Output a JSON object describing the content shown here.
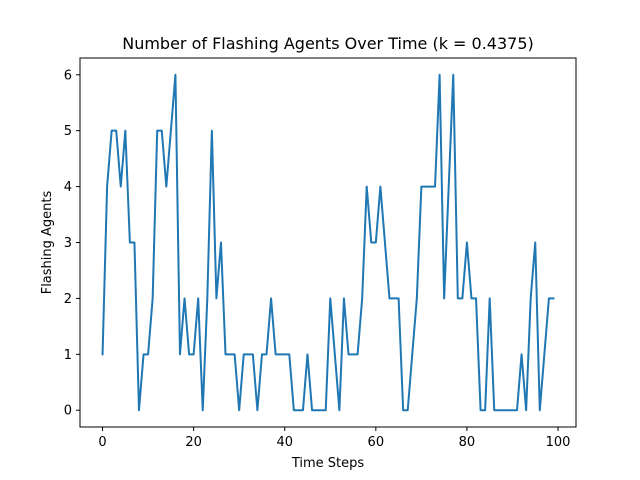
{
  "chart_data": {
    "type": "line",
    "title": "Number of Flashing Agents Over Time (k = 0.4375)",
    "xlabel": "Time Steps",
    "ylabel": "Flashing Agents",
    "xlim": [
      -4.95,
      103.95
    ],
    "ylim": [
      -0.3,
      6.3
    ],
    "xticks": [
      0,
      20,
      40,
      60,
      80,
      100
    ],
    "yticks": [
      0,
      1,
      2,
      3,
      4,
      5,
      6
    ],
    "grid": false,
    "series": [
      {
        "color": "#1f77b4",
        "x": [
          0,
          1,
          2,
          3,
          4,
          5,
          6,
          7,
          8,
          9,
          10,
          11,
          12,
          13,
          14,
          15,
          16,
          17,
          18,
          19,
          20,
          21,
          22,
          23,
          24,
          25,
          26,
          27,
          28,
          29,
          30,
          31,
          32,
          33,
          34,
          35,
          36,
          37,
          38,
          39,
          40,
          41,
          42,
          43,
          44,
          45,
          46,
          47,
          48,
          49,
          50,
          51,
          52,
          53,
          54,
          55,
          56,
          57,
          58,
          59,
          60,
          61,
          62,
          63,
          64,
          65,
          66,
          67,
          68,
          69,
          70,
          71,
          72,
          73,
          74,
          75,
          76,
          77,
          78,
          79,
          80,
          81,
          82,
          83,
          84,
          85,
          86,
          87,
          88,
          89,
          90,
          91,
          92,
          93,
          94,
          95,
          96,
          97,
          98,
          99
        ],
        "values": [
          1,
          4,
          5,
          5,
          4,
          5,
          3,
          3,
          0,
          1,
          1,
          2,
          5,
          5,
          4,
          5,
          6,
          1,
          2,
          1,
          1,
          2,
          0,
          2,
          5,
          2,
          3,
          1,
          1,
          1,
          0,
          1,
          1,
          1,
          0,
          1,
          1,
          2,
          1,
          1,
          1,
          1,
          0,
          0,
          0,
          1,
          0,
          0,
          0,
          0,
          2,
          1,
          0,
          2,
          1,
          1,
          1,
          2,
          4,
          3,
          3,
          4,
          3,
          2,
          2,
          2,
          0,
          0,
          1,
          2,
          4,
          4,
          4,
          4,
          6,
          2,
          4,
          6,
          2,
          2,
          3,
          2,
          2,
          0,
          0,
          2,
          0,
          0,
          0,
          0,
          0,
          0,
          1,
          0,
          2,
          3,
          0,
          1,
          2,
          2
        ]
      }
    ]
  }
}
